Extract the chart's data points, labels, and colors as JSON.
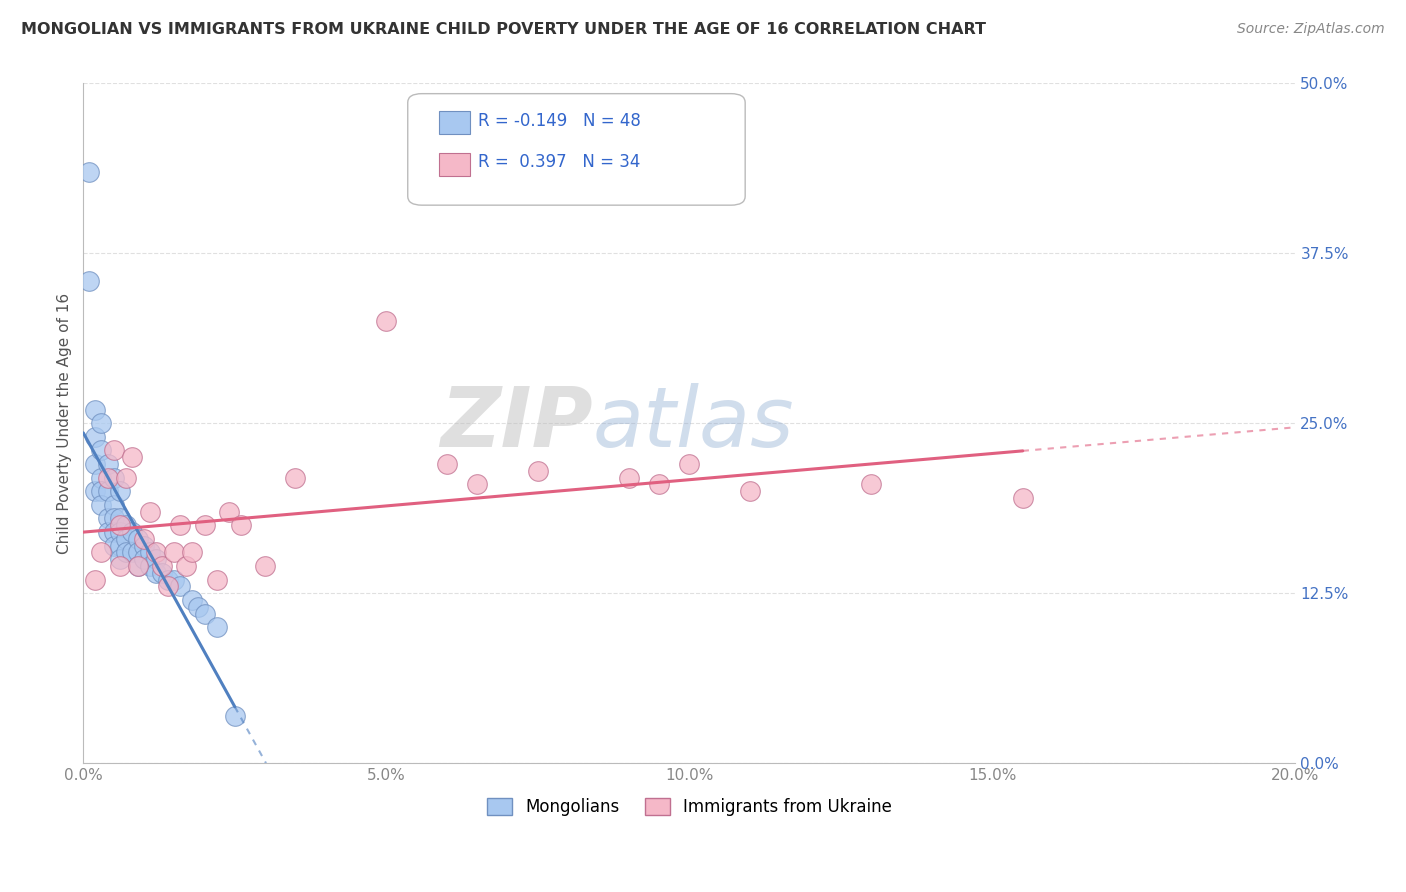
{
  "title": "MONGOLIAN VS IMMIGRANTS FROM UKRAINE CHILD POVERTY UNDER THE AGE OF 16 CORRELATION CHART",
  "source": "Source: ZipAtlas.com",
  "ylabel": "Child Poverty Under the Age of 16",
  "xlim": [
    0.0,
    0.2
  ],
  "ylim": [
    0.0,
    0.5
  ],
  "xticks": [
    0.0,
    0.05,
    0.1,
    0.15,
    0.2
  ],
  "xticklabels": [
    "0.0%",
    "5.0%",
    "10.0%",
    "15.0%",
    "20.0%"
  ],
  "yticks": [
    0.0,
    0.125,
    0.25,
    0.375,
    0.5
  ],
  "yticklabels": [
    "0.0%",
    "12.5%",
    "25.0%",
    "37.5%",
    "50.0%"
  ],
  "mongolian_color": "#A8C8F0",
  "mongolian_edge": "#7090C0",
  "ukraine_color": "#F5B8C8",
  "ukraine_edge": "#C07090",
  "line_mon_color": "#5080C0",
  "line_ukr_color": "#E06080",
  "mongolian_R": -0.149,
  "mongolian_N": 48,
  "ukraine_R": 0.397,
  "ukraine_N": 34,
  "legend_label_mongolian": "Mongolians",
  "legend_label_ukraine": "Immigrants from Ukraine",
  "watermark_zip": "ZIP",
  "watermark_atlas": "atlas",
  "mon_x": [
    0.001,
    0.001,
    0.002,
    0.002,
    0.002,
    0.002,
    0.003,
    0.003,
    0.003,
    0.003,
    0.003,
    0.004,
    0.004,
    0.004,
    0.004,
    0.005,
    0.005,
    0.005,
    0.005,
    0.005,
    0.006,
    0.006,
    0.006,
    0.006,
    0.006,
    0.007,
    0.007,
    0.007,
    0.008,
    0.008,
    0.009,
    0.009,
    0.009,
    0.01,
    0.01,
    0.011,
    0.011,
    0.012,
    0.012,
    0.013,
    0.014,
    0.015,
    0.016,
    0.018,
    0.019,
    0.02,
    0.022,
    0.025
  ],
  "mon_y": [
    0.435,
    0.355,
    0.26,
    0.24,
    0.22,
    0.2,
    0.25,
    0.23,
    0.21,
    0.2,
    0.19,
    0.22,
    0.2,
    0.18,
    0.17,
    0.21,
    0.19,
    0.18,
    0.17,
    0.16,
    0.2,
    0.18,
    0.17,
    0.16,
    0.15,
    0.175,
    0.165,
    0.155,
    0.17,
    0.155,
    0.165,
    0.155,
    0.145,
    0.16,
    0.15,
    0.155,
    0.145,
    0.15,
    0.14,
    0.14,
    0.135,
    0.135,
    0.13,
    0.12,
    0.115,
    0.11,
    0.1,
    0.035
  ],
  "ukr_x": [
    0.002,
    0.003,
    0.004,
    0.005,
    0.006,
    0.006,
    0.007,
    0.008,
    0.009,
    0.01,
    0.011,
    0.012,
    0.013,
    0.014,
    0.015,
    0.016,
    0.017,
    0.018,
    0.02,
    0.022,
    0.024,
    0.026,
    0.03,
    0.035,
    0.05,
    0.06,
    0.065,
    0.075,
    0.09,
    0.095,
    0.1,
    0.11,
    0.13,
    0.155
  ],
  "ukr_y": [
    0.135,
    0.155,
    0.21,
    0.23,
    0.145,
    0.175,
    0.21,
    0.225,
    0.145,
    0.165,
    0.185,
    0.155,
    0.145,
    0.13,
    0.155,
    0.175,
    0.145,
    0.155,
    0.175,
    0.135,
    0.185,
    0.175,
    0.145,
    0.21,
    0.325,
    0.22,
    0.205,
    0.215,
    0.21,
    0.205,
    0.22,
    0.2,
    0.205,
    0.195
  ],
  "grid_color": "#DDDDDD",
  "tick_label_color_y": "#4472C4",
  "tick_label_color_x": "#888888",
  "title_color": "#333333",
  "source_color": "#888888"
}
